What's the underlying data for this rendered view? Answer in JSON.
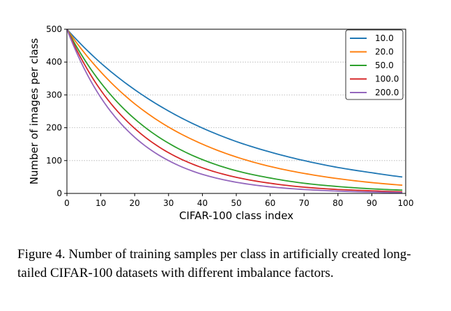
{
  "chart_data": {
    "type": "line",
    "xlabel": "CIFAR-100 class index",
    "ylabel": "Number of images per class",
    "xlim": [
      0,
      100
    ],
    "ylim": [
      0,
      500
    ],
    "xticks": [
      0,
      10,
      20,
      30,
      40,
      50,
      60,
      70,
      80,
      90,
      100
    ],
    "yticks": [
      0,
      100,
      200,
      300,
      400,
      500
    ],
    "grid": "horizontal-dotted",
    "legend_position": "top-right",
    "series": [
      {
        "name": "10.0",
        "color": "#1f77b4",
        "x": [
          0,
          10,
          20,
          30,
          40,
          50,
          60,
          70,
          80,
          90,
          99
        ],
        "y": [
          500,
          397,
          316,
          251,
          199,
          158,
          126,
          100,
          79,
          63,
          50
        ]
      },
      {
        "name": "20.0",
        "color": "#ff7f0e",
        "x": [
          0,
          10,
          20,
          30,
          40,
          50,
          60,
          70,
          80,
          90,
          99
        ],
        "y": [
          500,
          370,
          273,
          202,
          150,
          111,
          82,
          61,
          45,
          33,
          25
        ]
      },
      {
        "name": "50.0",
        "color": "#2ca02c",
        "x": [
          0,
          10,
          20,
          30,
          40,
          50,
          60,
          70,
          80,
          90,
          99
        ],
        "y": [
          500,
          337,
          227,
          153,
          103,
          69,
          47,
          31,
          21,
          14,
          10
        ]
      },
      {
        "name": "100.0",
        "color": "#d62728",
        "x": [
          0,
          10,
          20,
          30,
          40,
          50,
          60,
          70,
          80,
          90,
          99
        ],
        "y": [
          500,
          314,
          198,
          124,
          78,
          49,
          31,
          19,
          12,
          8,
          5
        ]
      },
      {
        "name": "200.0",
        "color": "#9467bd",
        "x": [
          0,
          10,
          20,
          30,
          40,
          50,
          60,
          70,
          80,
          90,
          99
        ],
        "y": [
          500,
          292,
          171,
          100,
          58,
          34,
          20,
          12,
          7,
          4,
          2.5
        ]
      }
    ]
  },
  "caption": "Figure 4. Number of training samples per class in artificially created long-tailed CIFAR-100 datasets with different imbalance factors."
}
